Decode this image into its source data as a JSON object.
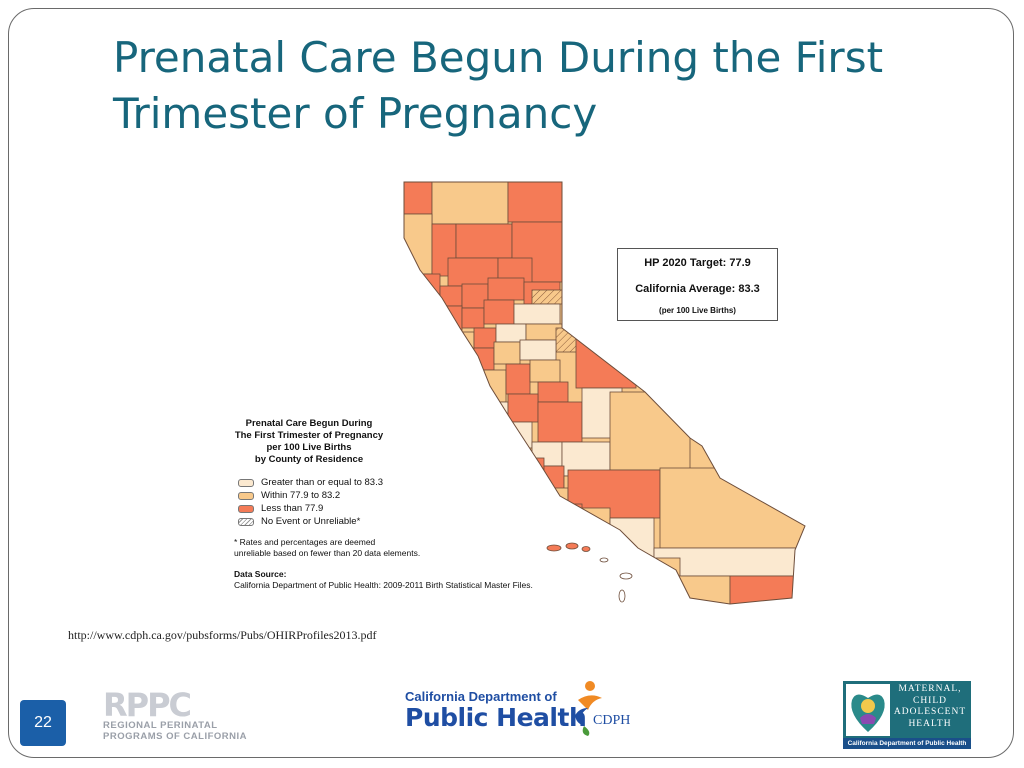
{
  "slide": {
    "title": "Prenatal Care Begun During the First Trimester of Pregnancy",
    "url": "http://www.cdph.ca.gov/pubsforms/Pubs/OHIRProfiles2013.pdf",
    "slide_number": "22"
  },
  "target_box": {
    "hp2020": "HP 2020 Target:  77.9",
    "ca_average": "California Average:  83.3",
    "unit": "(per 100 Live Births)"
  },
  "legend": {
    "title_lines": [
      "Prenatal Care Begun During",
      "The First Trimester of Pregnancy",
      "per 100 Live Births",
      "by County of Residence"
    ],
    "items": [
      {
        "label": "Greater than or equal to 83.3",
        "color": "#fbe9d0"
      },
      {
        "label": "Within 77.9 to 83.2",
        "color": "#f8c98b"
      },
      {
        "label": "Less than 77.9",
        "color": "#f47b57"
      },
      {
        "label": "No Event or Unreliable*",
        "color": "hatched"
      }
    ],
    "note": "* Rates and percentages are deemed\n  unreliable based on fewer than 20 data elements.",
    "source_label": "Data Source:",
    "source": "California Department of Public Health: 2009-2011 Birth Statistical Master Files."
  },
  "colors": {
    "title": "#17667c",
    "high": "#fbe9d0",
    "mid": "#f8c98b",
    "low": "#f47b57",
    "map_stroke": "#6d4d3a"
  },
  "logos": {
    "rppc_abbrev": "RPPC",
    "rppc_line1": "REGIONAL PERINATAL",
    "rppc_line2": "PROGRAMS OF CALIFORNIA",
    "cdph_line1": "California Department of",
    "cdph_line2": "Public Health",
    "cdph_abbrev": "CDPH",
    "mcah_line1": "MATERNAL,",
    "mcah_line2": "CHILD",
    "mcah_line3": "ADOLESCENT",
    "mcah_line4": "HEALTH",
    "mcah_footer": "California Department of Public Health"
  },
  "icons": [
    "cdph-figure-icon",
    "mcah-heart-icon"
  ]
}
